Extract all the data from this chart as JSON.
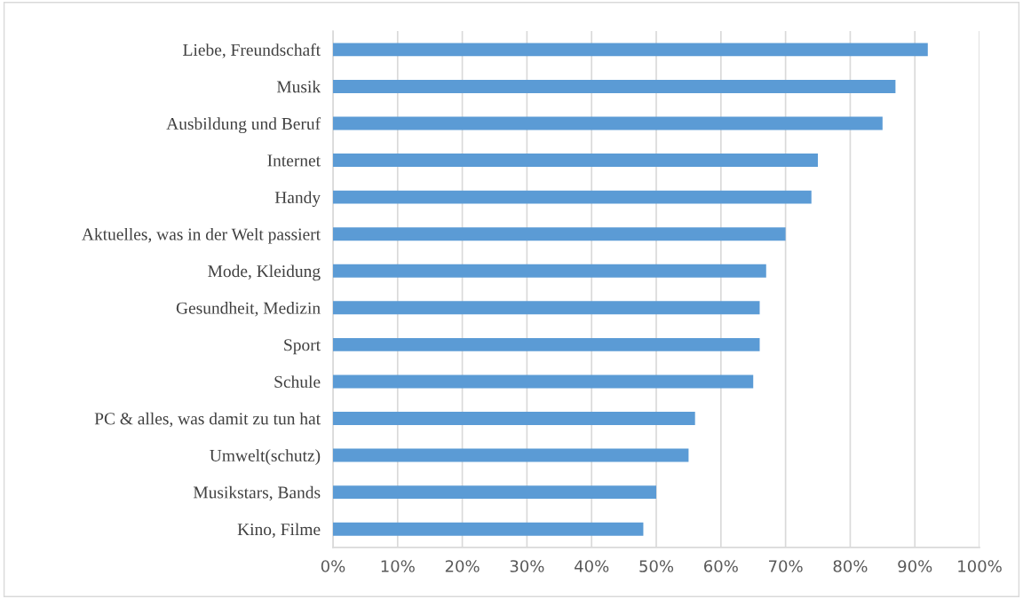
{
  "chart_data": {
    "type": "bar",
    "orientation": "horizontal",
    "categories": [
      "Liebe, Freundschaft",
      "Musik",
      "Ausbildung und Beruf",
      "Internet",
      "Handy",
      "Aktuelles, was in der Welt passiert",
      "Mode, Kleidung",
      "Gesundheit, Medizin",
      "Sport",
      "Schule",
      "PC & alles, was damit zu tun hat",
      "Umwelt(schutz)",
      "Musikstars, Bands",
      "Kino, Filme"
    ],
    "values": [
      92,
      87,
      85,
      75,
      74,
      70,
      67,
      66,
      66,
      65,
      56,
      55,
      50,
      48
    ],
    "color": "#5b9bd5",
    "xlim": [
      0,
      100
    ],
    "xticks": [
      {
        "value": 0,
        "label": "0%"
      },
      {
        "value": 10,
        "label": "10%"
      },
      {
        "value": 20,
        "label": "20%"
      },
      {
        "value": 30,
        "label": "30%"
      },
      {
        "value": 40,
        "label": "40%"
      },
      {
        "value": 50,
        "label": "50%"
      },
      {
        "value": 60,
        "label": "60%"
      },
      {
        "value": 70,
        "label": "70%"
      },
      {
        "value": 80,
        "label": "80%"
      },
      {
        "value": 90,
        "label": "90%"
      },
      {
        "value": 100,
        "label": "100%"
      }
    ],
    "grid": "x"
  }
}
